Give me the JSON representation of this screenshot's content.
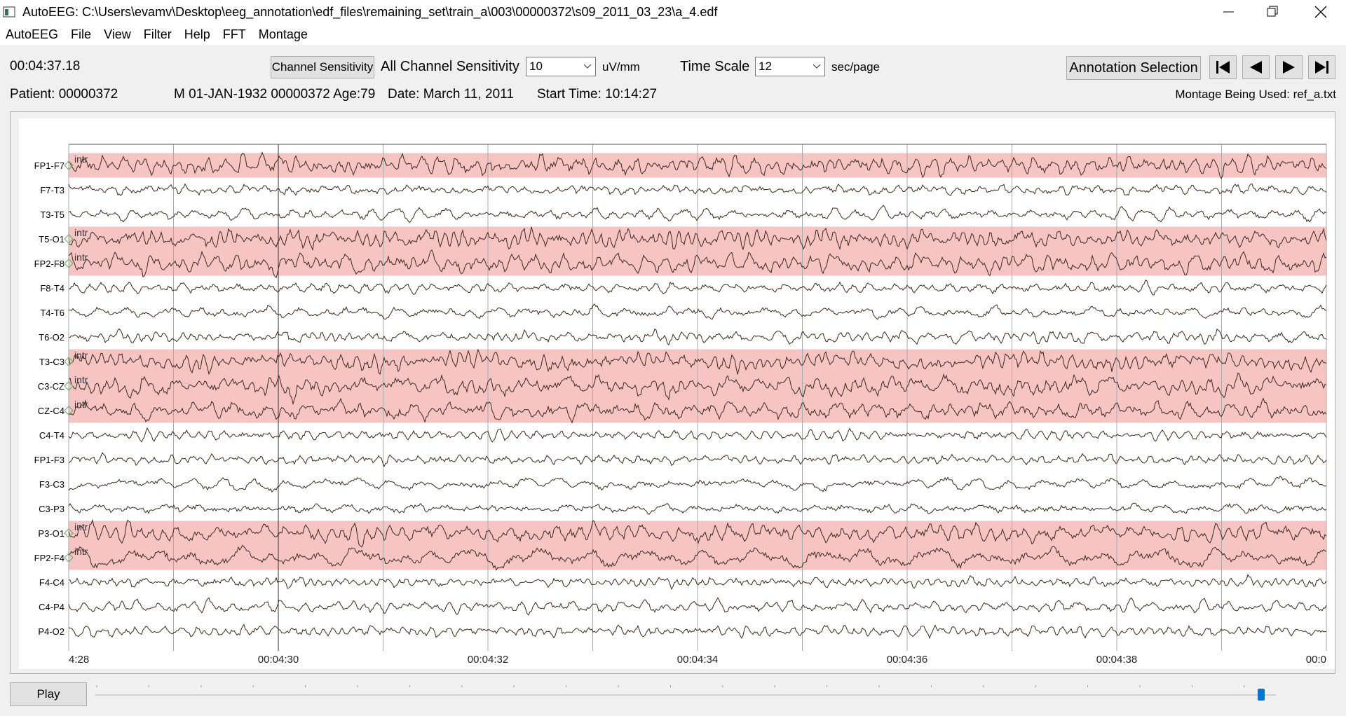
{
  "window": {
    "title": "AutoEEG:  C:\\Users\\evamv\\Desktop\\eeg_annotation\\edf_files\\remaining_set\\train_a\\003\\00000372\\s09_2011_03_23\\a_4.edf"
  },
  "menu": [
    "AutoEEG",
    "File",
    "View",
    "Filter",
    "Help",
    "FFT",
    "Montage"
  ],
  "toolbar": {
    "time": "00:04:37.18",
    "channel_sensitivity_button": "Channel Sensitivity",
    "all_channel_sensitivity": "All Channel Sensitivity",
    "sensitivity_value": "10",
    "sensitivity_unit": "uV/mm",
    "time_scale": "Time Scale",
    "time_scale_value": "12",
    "time_scale_unit": "sec/page",
    "annotation_selection": "Annotation Selection"
  },
  "info": {
    "patient": "Patient: 00000372",
    "demographics": "M 01-JAN-1932 00000372 Age:79",
    "date": "Date: March 11, 2011",
    "start_time": "Start Time: 10:14:27",
    "montage": "Montage Being Used: ref_a.txt"
  },
  "channels": [
    {
      "label": "FP1-F7",
      "annotation": "intr"
    },
    {
      "label": "F7-T3"
    },
    {
      "label": "T3-T5"
    },
    {
      "label": "T5-O1",
      "annotation": "intr"
    },
    {
      "label": "FP2-F8",
      "annotation": "intr"
    },
    {
      "label": "F8-T4"
    },
    {
      "label": "T4-T6"
    },
    {
      "label": "T6-O2"
    },
    {
      "label": "T3-C3",
      "annotation": "intr"
    },
    {
      "label": "C3-CZ",
      "annotation": "intr"
    },
    {
      "label": "CZ-C4",
      "annotation": "intr"
    },
    {
      "label": "C4-T4"
    },
    {
      "label": "FP1-F3"
    },
    {
      "label": "F3-C3"
    },
    {
      "label": "C3-P3"
    },
    {
      "label": "P3-O1",
      "annotation": "intr"
    },
    {
      "label": "FP2-F4",
      "annotation": "intr"
    },
    {
      "label": "F4-C4"
    },
    {
      "label": "C4-P4"
    },
    {
      "label": "P4-O2"
    }
  ],
  "time_labels": [
    "4:28",
    "00:04:30",
    "00:04:32",
    "00:04:34",
    "00:04:36",
    "00:04:38",
    "00:0"
  ],
  "play_button": "Play"
}
